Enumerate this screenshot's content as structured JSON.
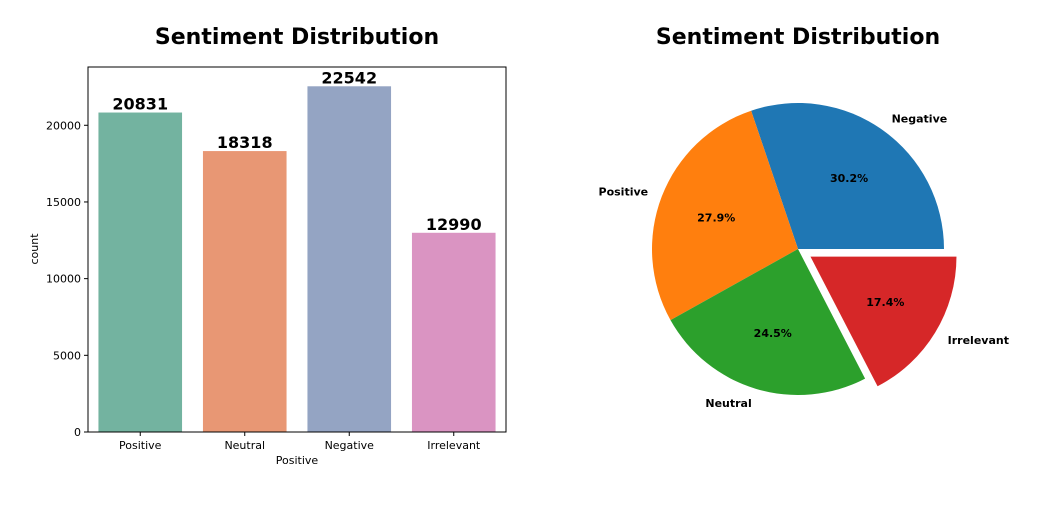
{
  "chart_data": [
    {
      "type": "bar",
      "title": "Sentiment Distribution",
      "xlabel": "Positive",
      "ylabel": "count",
      "categories": [
        "Positive",
        "Neutral",
        "Negative",
        "Irrelevant"
      ],
      "values": [
        20831,
        18318,
        22542,
        12990
      ],
      "data_labels": [
        "20831",
        "18318",
        "22542",
        "12990"
      ],
      "colors": [
        "#73b3a0",
        "#e89774",
        "#94a4c3",
        "#da94c2"
      ],
      "ylim": [
        0,
        23800
      ],
      "yticks": [
        0,
        5000,
        10000,
        15000,
        20000
      ],
      "ytick_labels": [
        "0",
        "5000",
        "10000",
        "15000",
        "20000"
      ],
      "grid": false
    },
    {
      "type": "pie",
      "title": "Sentiment Distribution",
      "labels": [
        "Negative",
        "Positive",
        "Neutral",
        "Irrelevant"
      ],
      "values": [
        30.2,
        27.9,
        24.5,
        17.4
      ],
      "percent_labels": [
        "30.2%",
        "27.9%",
        "24.5%",
        "17.4%"
      ],
      "colors": [
        "#1f77b4",
        "#ff7f0e",
        "#2ca02c",
        "#d62728"
      ],
      "explode": [
        0,
        0,
        0,
        0.1
      ],
      "start_angle_deg": 0,
      "direction": "counterclockwise"
    }
  ]
}
